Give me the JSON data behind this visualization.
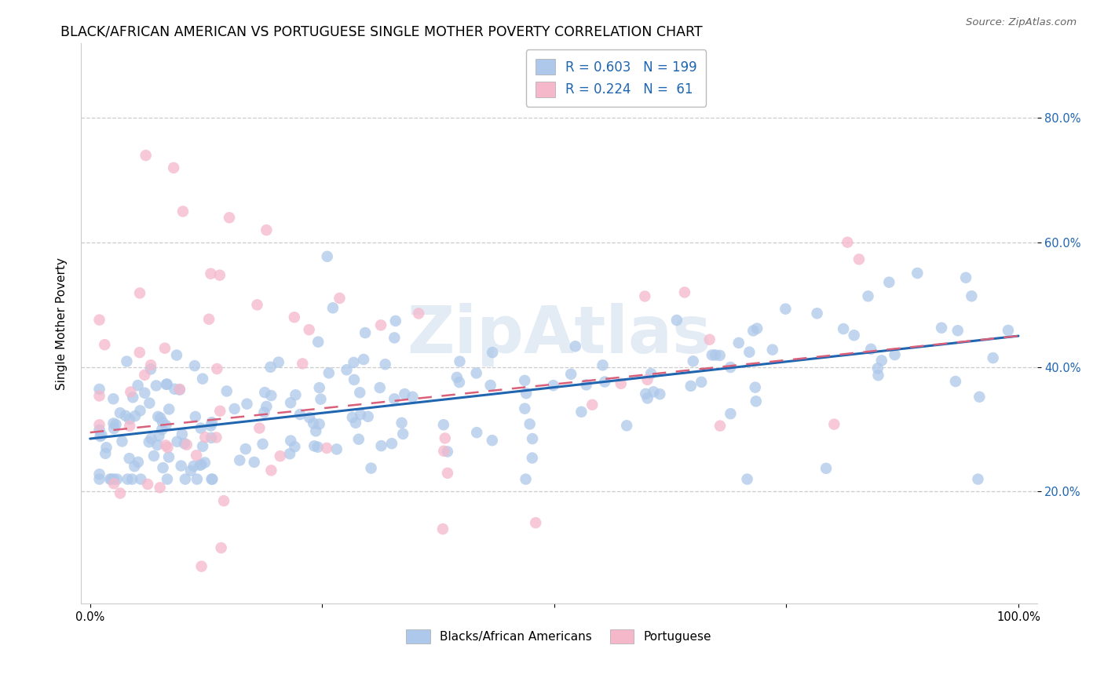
{
  "title": "BLACK/AFRICAN AMERICAN VS PORTUGUESE SINGLE MOTHER POVERTY CORRELATION CHART",
  "source": "Source: ZipAtlas.com",
  "ylabel": "Single Mother Poverty",
  "blue_R": 0.603,
  "blue_N": 199,
  "pink_R": 0.224,
  "pink_N": 61,
  "blue_color": "#adc8ea",
  "pink_color": "#f5b8cb",
  "blue_line_color": "#2065b0",
  "pink_line_color": "#d9607a",
  "legend_label_blue": "Blacks/African Americans",
  "legend_label_pink": "Portuguese",
  "watermark": "ZipAtlas",
  "blue_intercept": 0.285,
  "blue_slope": 0.165,
  "pink_intercept": 0.295,
  "pink_slope": 0.155,
  "blue_noise": 0.065,
  "pink_noise": 0.115
}
